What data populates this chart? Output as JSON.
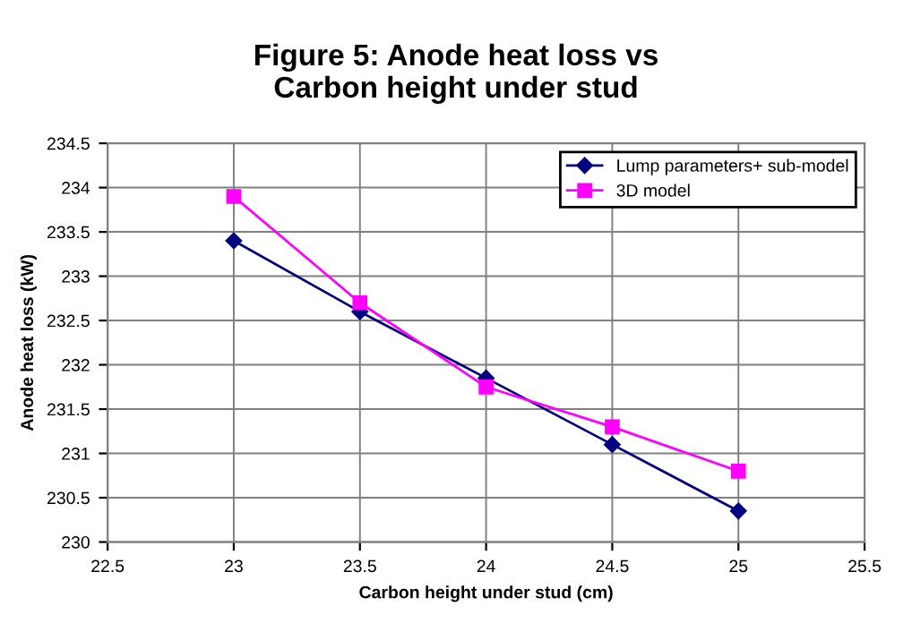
{
  "chart_data": {
    "type": "line",
    "title": "Figure 5: Anode heat loss vs\nCarbon height under stud",
    "xlabel": "Carbon height under stud (cm)",
    "ylabel": "Anode heat loss (kW)",
    "x": [
      23,
      23.5,
      24,
      24.5,
      25
    ],
    "series": [
      {
        "name": "Lump parameters+ sub-model",
        "color": "#000080",
        "marker": "diamond",
        "values": [
          233.4,
          232.6,
          231.85,
          231.1,
          230.35
        ]
      },
      {
        "name": "3D model",
        "color": "#ff00ff",
        "marker": "square",
        "values": [
          233.9,
          232.7,
          231.75,
          231.3,
          230.8
        ]
      }
    ],
    "xlim": [
      22.5,
      25.5
    ],
    "xticks": [
      22.5,
      23,
      23.5,
      24,
      24.5,
      25,
      25.5
    ],
    "ylim": [
      230,
      234.5
    ],
    "yticks": [
      230,
      230.5,
      231,
      231.5,
      232,
      232.5,
      233,
      233.5,
      234,
      234.5
    ],
    "grid": true,
    "legend": "top right",
    "line_style": "solid"
  }
}
